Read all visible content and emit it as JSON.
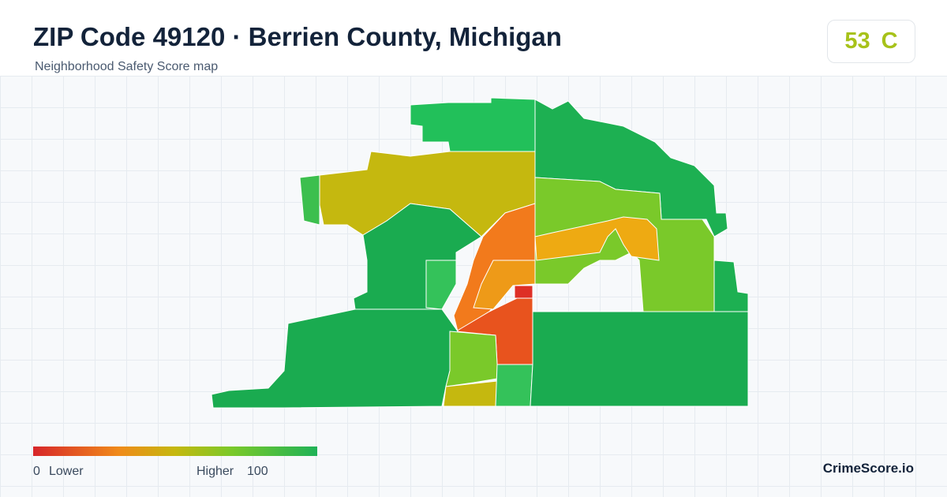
{
  "header": {
    "title": "ZIP Code 49120 · Berrien County, Michigan",
    "subtitle": "Neighborhood Safety Score map"
  },
  "score": {
    "value": "53",
    "grade": "C"
  },
  "legend": {
    "min": "0",
    "min_label": "Lower",
    "max_label": "Higher",
    "max": "100"
  },
  "brand": "CrimeScore.io"
}
